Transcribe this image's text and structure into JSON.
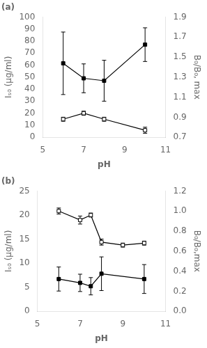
{
  "chart_data": [
    {
      "type": "line",
      "title": "(a)",
      "xlabel": "pH",
      "ylabel": "Iₛ₀ (μg/ml)",
      "y2label": "B₀/B₀, max",
      "xlim": [
        5,
        11
      ],
      "xticks": [
        5,
        7,
        9,
        11
      ],
      "ylim": [
        0,
        100
      ],
      "yticks": [
        0,
        10,
        20,
        30,
        40,
        50,
        60,
        70,
        80,
        90,
        100
      ],
      "y2lim": [
        0.7,
        1.9
      ],
      "y2ticks": [
        0.7,
        0.9,
        1.1,
        1.3,
        1.5,
        1.7,
        1.9
      ],
      "grid": false,
      "series": [
        {
          "axis": "y",
          "color": "#000000",
          "marker": "square",
          "x": [
            6.0,
            7.0,
            8.0,
            10.0
          ],
          "values": [
            61.5,
            49.0,
            47.0,
            77.0
          ],
          "yerr": [
            26.0,
            12.0,
            17.0,
            14.0
          ]
        },
        {
          "axis": "y2",
          "color": "#000000",
          "marker": "open_square",
          "x": [
            6.0,
            7.0,
            8.0,
            10.0
          ],
          "values": [
            0.88,
            0.94,
            0.88,
            0.77
          ],
          "yerr": [
            0.02,
            0.02,
            0.02,
            0.03
          ]
        }
      ]
    },
    {
      "type": "line",
      "title": "(b)",
      "xlabel": "pH",
      "ylabel": "Iₛ₀ (μg/ml)",
      "y2label": "B₀/B₀,max",
      "xlim": [
        5,
        11
      ],
      "xticks": [
        5,
        7,
        9,
        11
      ],
      "ylim": [
        0,
        25
      ],
      "yticks": [
        0,
        5,
        10,
        15,
        20,
        25
      ],
      "y2lim": [
        0,
        1.2
      ],
      "y2ticks": [
        {
          "value": 0,
          "label": "0.0"
        },
        0.2,
        0.4,
        0.6,
        0.8,
        {
          "value": 1.0,
          "label": "1.0"
        },
        1.2
      ],
      "grid": false,
      "series": [
        {
          "axis": "y",
          "color": "#000000",
          "marker": "square",
          "x": [
            6.0,
            7.0,
            7.5,
            8.0,
            10.0
          ],
          "values": [
            6.7,
            5.9,
            5.2,
            7.8,
            6.7
          ],
          "yerr": [
            2.5,
            1.8,
            1.8,
            3.5,
            3.0
          ]
        },
        {
          "axis": "y2",
          "color": "#000000",
          "marker": "open_square",
          "x": [
            6.0,
            7.0,
            7.5,
            8.0,
            9.0,
            10.0
          ],
          "values": [
            1.0,
            0.91,
            0.96,
            0.69,
            0.66,
            0.68
          ],
          "yerr": [
            0.03,
            0.04,
            0.02,
            0.03,
            0.02,
            0.02
          ]
        }
      ]
    }
  ]
}
